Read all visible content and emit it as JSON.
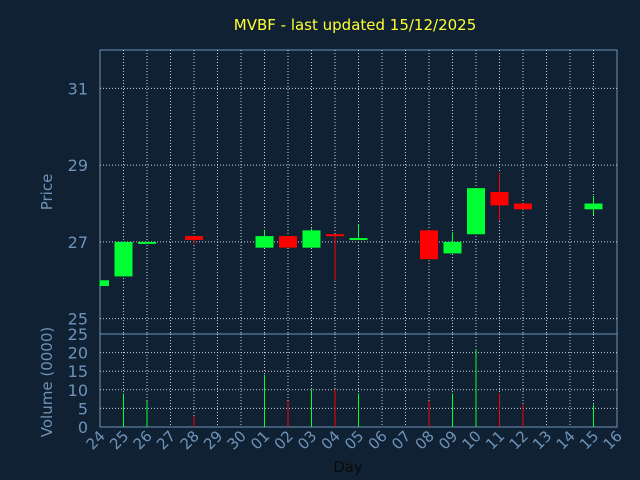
{
  "chart_data": {
    "type": "candlestick",
    "title": "MVBF - last updated 15/12/2025",
    "xlabel": "Day",
    "price": {
      "ylabel": "Price",
      "ylim": [
        24.6,
        32
      ],
      "yticks": [
        25,
        27,
        29,
        31
      ],
      "grid": true
    },
    "volume": {
      "ylabel": "Volume (0000)",
      "ylim": [
        0,
        25
      ],
      "yticks": [
        0,
        5,
        10,
        15,
        20,
        25
      ],
      "grid": true
    },
    "categories": [
      "24",
      "25",
      "26",
      "27",
      "28",
      "29",
      "30",
      "01",
      "02",
      "03",
      "04",
      "05",
      "06",
      "07",
      "08",
      "09",
      "10",
      "11",
      "12",
      "13",
      "14",
      "15",
      "16"
    ],
    "candles": [
      {
        "x": 0,
        "open": 25.85,
        "close": 26.0,
        "high": 26.0,
        "low": 25.85,
        "volume": 0
      },
      {
        "x": 1,
        "open": 26.1,
        "close": 27.0,
        "high": 27.0,
        "low": 26.1,
        "volume": 9
      },
      {
        "x": 2,
        "open": 26.95,
        "close": 27.0,
        "high": 27.0,
        "low": 26.95,
        "volume": 7
      },
      {
        "x": 4,
        "open": 27.15,
        "close": 27.05,
        "high": 27.15,
        "low": 26.95,
        "volume": 3
      },
      {
        "x": 7,
        "open": 26.85,
        "close": 27.15,
        "high": 27.3,
        "low": 26.85,
        "volume": 14
      },
      {
        "x": 8,
        "open": 27.15,
        "close": 26.85,
        "high": 27.15,
        "low": 26.85,
        "volume": 7
      },
      {
        "x": 9,
        "open": 26.85,
        "close": 27.3,
        "high": 27.35,
        "low": 26.85,
        "volume": 10
      },
      {
        "x": 10,
        "open": 27.2,
        "close": 27.15,
        "high": 27.2,
        "low": 26.0,
        "volume": 10
      },
      {
        "x": 11,
        "open": 27.05,
        "close": 27.1,
        "high": 27.45,
        "low": 27.05,
        "volume": 9
      },
      {
        "x": 14,
        "open": 27.3,
        "close": 26.55,
        "high": 27.3,
        "low": 26.55,
        "volume": 7
      },
      {
        "x": 15,
        "open": 26.7,
        "close": 27.0,
        "high": 27.25,
        "low": 26.7,
        "volume": 9
      },
      {
        "x": 16,
        "open": 27.2,
        "close": 28.4,
        "high": 28.4,
        "low": 27.2,
        "volume": 21
      },
      {
        "x": 17,
        "open": 28.3,
        "close": 27.95,
        "high": 28.8,
        "low": 27.55,
        "volume": 9
      },
      {
        "x": 18,
        "open": 28.0,
        "close": 27.85,
        "high": 28.0,
        "low": 27.85,
        "volume": 6
      },
      {
        "x": 21,
        "open": 27.85,
        "close": 28.0,
        "high": 28.2,
        "low": 27.7,
        "volume": 6
      }
    ],
    "colors": {
      "up": "#00ff33",
      "down": "#ff0000",
      "grid": "#c9d3dc",
      "background": "#0f2133",
      "plot_border": "#6f93b8"
    }
  }
}
